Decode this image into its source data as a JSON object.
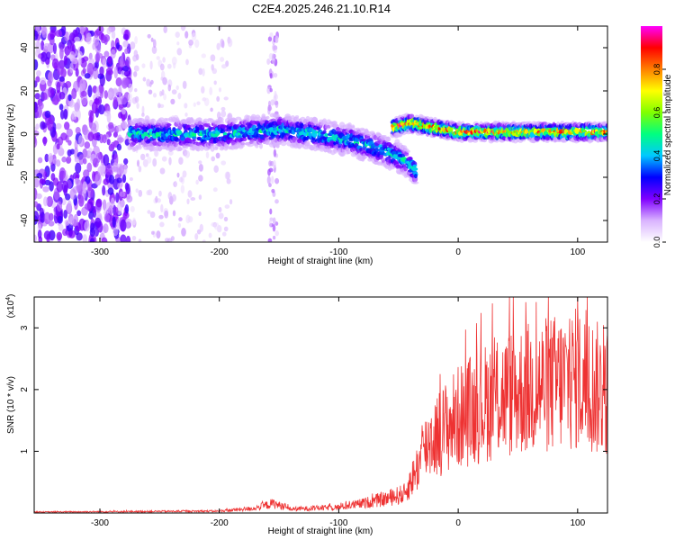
{
  "title": "C2E4.2025.246.21.10.R14",
  "chart_data": [
    {
      "type": "heatmap",
      "xlabel": "Height of straight line (km)",
      "ylabel": "Frequency (Hz)",
      "xlim": [
        -355,
        125
      ],
      "ylim": [
        -50,
        50
      ],
      "xticks": [
        -300,
        -200,
        -100,
        0,
        100
      ],
      "yticks": [
        -40,
        -20,
        0,
        20,
        40
      ],
      "colorbar": {
        "label": "Normalized spectral amplitude",
        "range": [
          0,
          1
        ],
        "ticks": [
          0.0,
          0.2,
          0.4,
          0.6,
          0.8
        ],
        "colormap": [
          "#ffffff",
          "#d9b3ff",
          "#8000ff",
          "#0000ff",
          "#00c8ff",
          "#00ff80",
          "#80ff00",
          "#ffff00",
          "#ff8000",
          "#ff0000",
          "#ff00ff"
        ]
      },
      "features": {
        "broadband_noise_x_range": [
          -355,
          -275
        ],
        "sparse_noise_x_range": [
          -275,
          -190
        ],
        "vertical_streak_x": -155,
        "band_start_x": -275,
        "band_center_hz": [
          {
            "x": -275,
            "y": 0
          },
          {
            "x": -200,
            "y": 0
          },
          {
            "x": -150,
            "y": 2
          },
          {
            "x": -120,
            "y": 0
          },
          {
            "x": -90,
            "y": -3
          },
          {
            "x": -60,
            "y": -8
          },
          {
            "x": -45,
            "y": -12
          },
          {
            "x": -35,
            "y": -17
          },
          {
            "x": -55,
            "y": 3
          },
          {
            "x": -40,
            "y": 5
          },
          {
            "x": 0,
            "y": 1
          },
          {
            "x": 125,
            "y": 1
          }
        ],
        "band_peak_amplitude": 0.95
      }
    },
    {
      "type": "line",
      "xlabel": "Height of straight line (km)",
      "ylabel": "SNR (10 * v/v)",
      "ymultiplier": "(x10",
      "ymultiplier_exp": "4",
      "ymultiplier_close": ")",
      "xlim": [
        -355,
        125
      ],
      "ylim": [
        0,
        3.5
      ],
      "xticks": [
        -300,
        -200,
        -100,
        0,
        100
      ],
      "yticks": [
        1,
        2,
        3
      ],
      "color": "#ee3333",
      "envelope": [
        {
          "x": -355,
          "y": 0.02
        },
        {
          "x": -200,
          "y": 0.04
        },
        {
          "x": -170,
          "y": 0.1
        },
        {
          "x": -155,
          "y": 0.2
        },
        {
          "x": -140,
          "y": 0.08
        },
        {
          "x": -100,
          "y": 0.12
        },
        {
          "x": -80,
          "y": 0.2
        },
        {
          "x": -60,
          "y": 0.3
        },
        {
          "x": -45,
          "y": 0.4
        },
        {
          "x": -35,
          "y": 0.9
        },
        {
          "x": -25,
          "y": 1.5
        },
        {
          "x": -10,
          "y": 1.8
        },
        {
          "x": 0,
          "y": 2.0
        },
        {
          "x": 30,
          "y": 2.4
        },
        {
          "x": 60,
          "y": 2.6
        },
        {
          "x": 100,
          "y": 2.8
        },
        {
          "x": 125,
          "y": 2.5
        }
      ],
      "peak": {
        "x": 100,
        "y": 3.5
      }
    }
  ]
}
